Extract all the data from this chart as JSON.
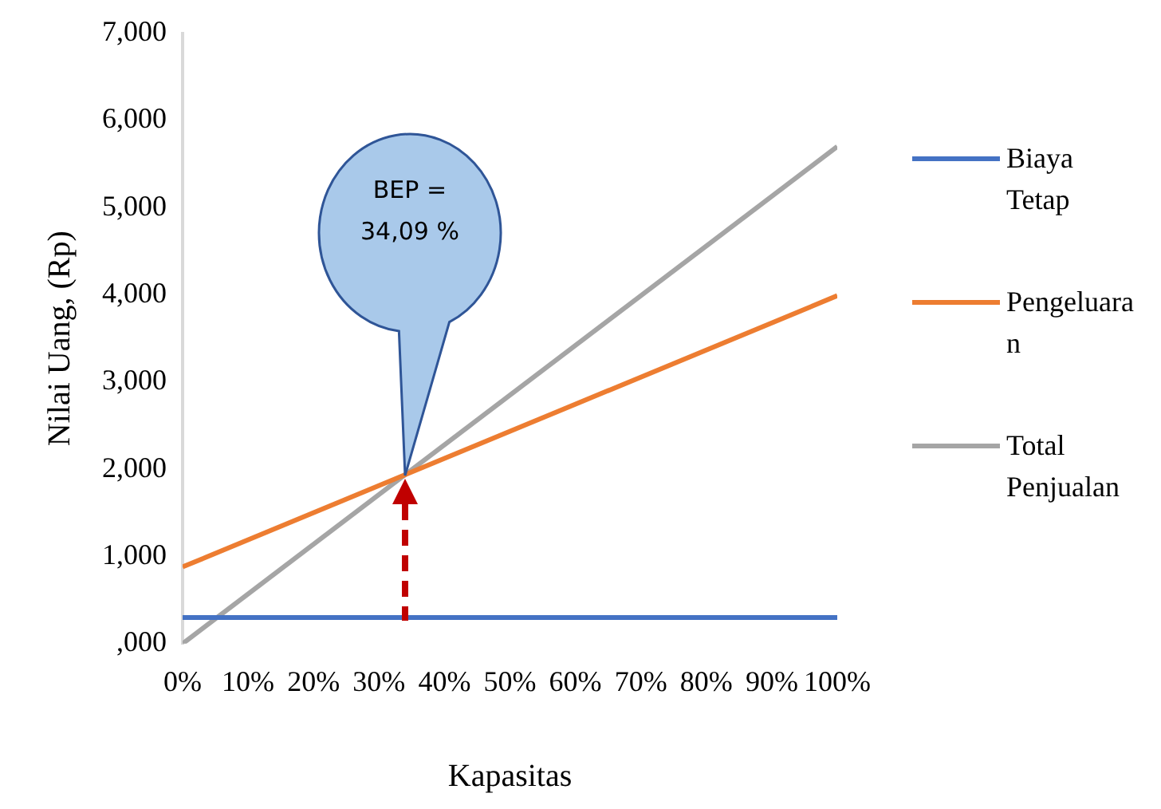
{
  "chart_data": {
    "type": "line",
    "xlabel": "Kapasitas",
    "ylabel": "Nilai Uang, (Rp)",
    "x": [
      0,
      100
    ],
    "series": [
      {
        "name": "Biaya Tetap",
        "color": "#4472c4",
        "values": [
          300,
          300
        ]
      },
      {
        "name": "Pengeluaran",
        "color": "#ed7d31",
        "values": [
          880,
          3990
        ]
      },
      {
        "name": "Total Penjualan",
        "color": "#a5a5a5",
        "values": [
          0,
          5700
        ]
      }
    ],
    "xlim": [
      0,
      100
    ],
    "xticks": [
      {
        "value": 0,
        "label": "0%"
      },
      {
        "value": 10,
        "label": "10%"
      },
      {
        "value": 20,
        "label": "20%"
      },
      {
        "value": 30,
        "label": "30%"
      },
      {
        "value": 40,
        "label": "40%"
      },
      {
        "value": 50,
        "label": "50%"
      },
      {
        "value": 60,
        "label": "60%"
      },
      {
        "value": 70,
        "label": "70%"
      },
      {
        "value": 80,
        "label": "80%"
      },
      {
        "value": 90,
        "label": "90%"
      },
      {
        "value": 100,
        "label": "100%"
      }
    ],
    "ylim": [
      0,
      7000
    ],
    "yticks": [
      {
        "value": 0,
        "label": ",000"
      },
      {
        "value": 1000,
        "label": "1,000"
      },
      {
        "value": 2000,
        "label": "2,000"
      },
      {
        "value": 3000,
        "label": "3,000"
      },
      {
        "value": 4000,
        "label": "4,000"
      },
      {
        "value": 5000,
        "label": "5,000"
      },
      {
        "value": 6000,
        "label": "6,000"
      },
      {
        "value": 7000,
        "label": "7,000"
      }
    ],
    "annotations": [
      "BEP = 34,09 %"
    ],
    "grid": false,
    "legend": "right",
    "marker": "none",
    "line_style": "solid"
  }
}
